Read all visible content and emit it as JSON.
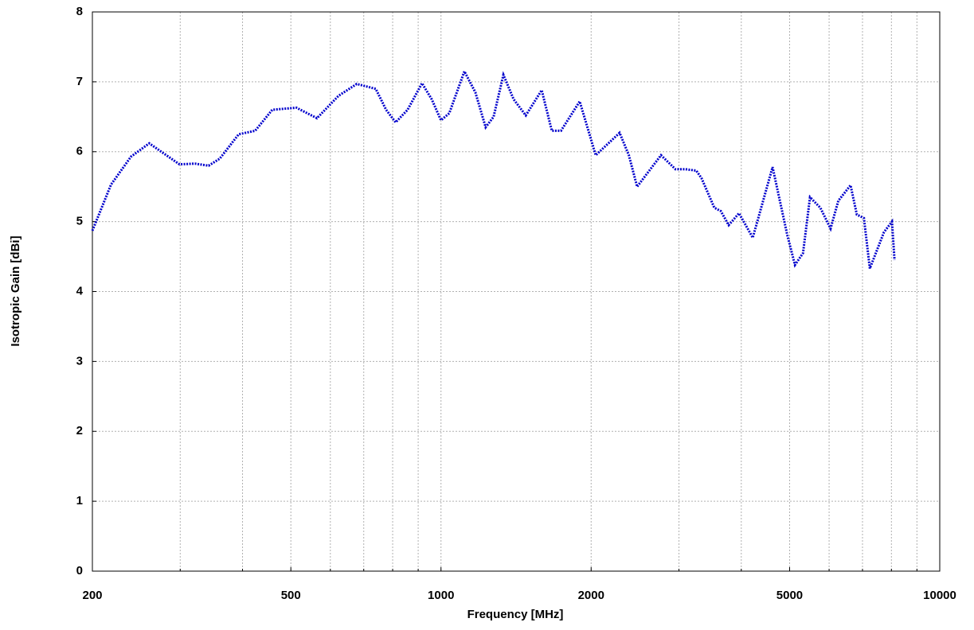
{
  "chart_data": {
    "type": "line",
    "xlabel": "Frequency [MHz]",
    "ylabel": "Isotropic Gain [dBi]",
    "xscale": "log",
    "xlim": [
      200,
      10000
    ],
    "ylim": [
      0,
      8
    ],
    "xticks": [
      200,
      500,
      1000,
      2000,
      5000,
      10000
    ],
    "xminor_ticks": [
      300,
      400,
      600,
      700,
      800,
      900,
      3000,
      4000,
      6000,
      7000,
      8000,
      9000
    ],
    "yticks": [
      0,
      1,
      2,
      3,
      4,
      5,
      6,
      7,
      8
    ],
    "grid": true,
    "series": [
      {
        "name": "Isotropic Gain",
        "color": "#0000cc",
        "x": [
          200,
          218,
          239,
          260,
          299,
          321,
          342,
          360,
          393,
          424,
          459,
          513,
          564,
          623,
          678,
          740,
          776,
          811,
          857,
          916,
          958,
          1000,
          1039,
          1114,
          1172,
          1229,
          1275,
          1334,
          1398,
          1479,
          1592,
          1668,
          1740,
          1897,
          2043,
          2281,
          2380,
          2473,
          2761,
          2951,
          3087,
          3250,
          3330,
          3531,
          3640,
          3774,
          3958,
          4217,
          4622,
          4780,
          4950,
          5126,
          5320,
          5494,
          5761,
          6040,
          6263,
          6625,
          6820,
          7047,
          7240,
          7730,
          8021,
          8116
        ],
        "values": [
          4.87,
          5.53,
          5.93,
          6.12,
          5.82,
          5.83,
          5.8,
          5.9,
          6.25,
          6.3,
          6.6,
          6.63,
          6.48,
          6.8,
          6.97,
          6.9,
          6.6,
          6.42,
          6.6,
          6.98,
          6.75,
          6.45,
          6.55,
          7.15,
          6.85,
          6.35,
          6.5,
          7.1,
          6.75,
          6.52,
          6.88,
          6.3,
          6.3,
          6.72,
          5.95,
          6.27,
          5.95,
          5.5,
          5.95,
          5.75,
          5.75,
          5.73,
          5.62,
          5.2,
          5.15,
          4.95,
          5.12,
          4.77,
          5.78,
          5.3,
          4.8,
          4.38,
          4.55,
          5.35,
          5.2,
          4.9,
          5.3,
          5.52,
          5.1,
          5.05,
          4.33,
          4.85,
          5.0,
          4.45
        ]
      }
    ]
  }
}
